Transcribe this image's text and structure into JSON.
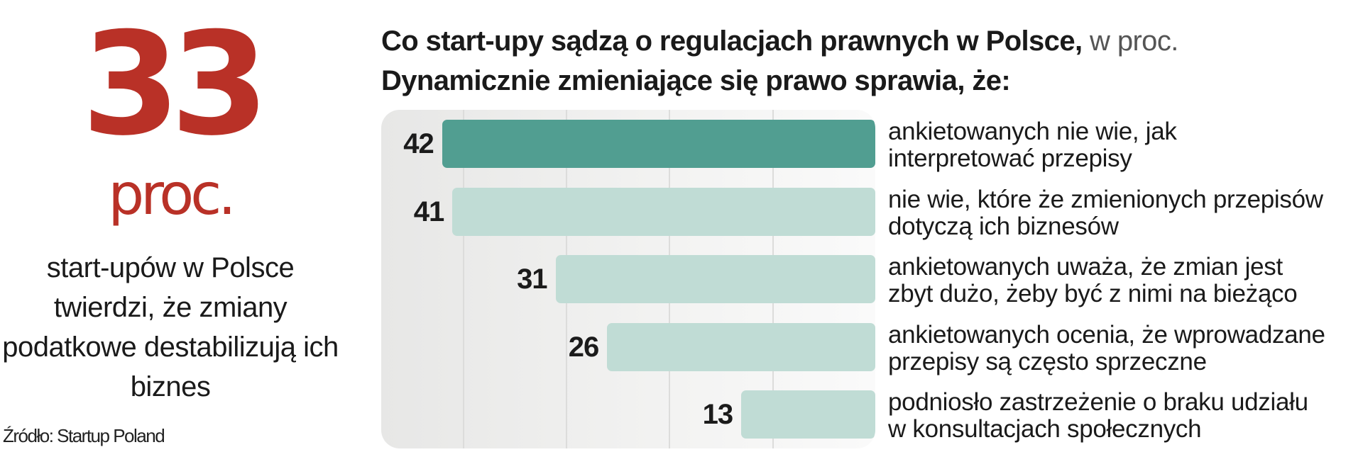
{
  "headline": {
    "number": "33",
    "unit": "proc.",
    "description": "start-upów w Polsce twierdzi, że zmiany podatkowe destabilizują ich biznes"
  },
  "source": "Źródło: Startup Poland",
  "colors": {
    "accent_red": "#b93127",
    "highlight_bar": "#519e91",
    "bar": "#c0dcd5"
  },
  "chart_data": {
    "type": "bar",
    "orientation": "horizontal",
    "title": "Co start-upy sądzą o regulacjach prawnych w Polsce,",
    "title_unit": "w proc.",
    "subtitle": "Dynamicznie zmieniające się prawo sprawia, że:",
    "xlim": [
      0,
      50
    ],
    "grid": true,
    "categories": [
      "ankietowanych nie wie, jak interpretować przepisy",
      "nie wie, które że zmienionych przepisów dotyczą ich biznesów",
      "ankietowanych uważa, że zmian jest zbyt dużo, żeby być z nimi na bieżąco",
      "ankietowanych ocenia, że wprowadzane przepisy są często sprzeczne",
      "podniosło zastrzeżenie o braku udziału w konsultacjach społecznych"
    ],
    "category_lines": [
      [
        "ankietowanych nie wie, jak",
        "interpretować przepisy"
      ],
      [
        "nie wie, które że zmienionych przepisów",
        "dotyczą ich biznesów"
      ],
      [
        "ankietowanych uważa, że zmian jest",
        "zbyt dużo, żeby być z nimi na bieżąco"
      ],
      [
        "ankietowanych ocenia, że wprowadzane",
        "przepisy są często sprzeczne"
      ],
      [
        "podniosło zastrzeżenie o braku udziału",
        "w konsultacjach społecznych"
      ]
    ],
    "values": [
      42,
      41,
      31,
      26,
      13
    ],
    "value_labels": [
      "42",
      "41",
      "31",
      "26",
      "13"
    ],
    "highlighted_index": 0
  }
}
